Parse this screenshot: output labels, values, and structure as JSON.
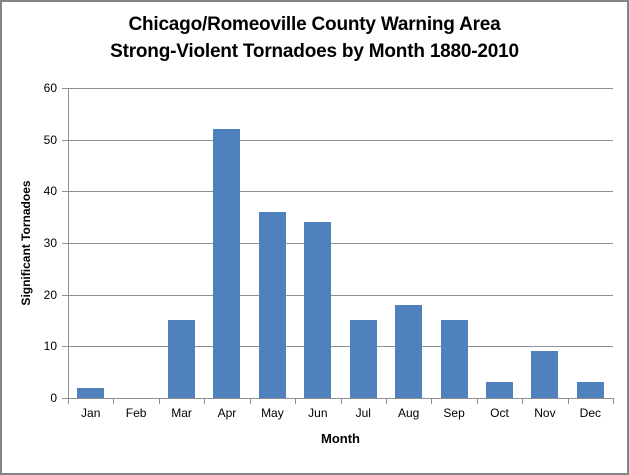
{
  "window": {
    "background": "#FFFFFF",
    "border_color": "#848484"
  },
  "title": {
    "line1": "Chicago/Romeoville County Warning Area",
    "line2": "Strong-Violent Tornadoes by Month 1880-2010"
  },
  "chart_data": {
    "type": "bar",
    "title": "Chicago/Romeoville County Warning Area Strong-Violent Tornadoes by Month 1880-2010",
    "categories": [
      "Jan",
      "Feb",
      "Mar",
      "Apr",
      "May",
      "Jun",
      "Jul",
      "Aug",
      "Sep",
      "Oct",
      "Nov",
      "Dec"
    ],
    "values": [
      2,
      0,
      15,
      52,
      36,
      34,
      15,
      18,
      15,
      3,
      9,
      3
    ],
    "xlabel": "Month",
    "ylabel": "Significant Tornadoes",
    "ylim": [
      0,
      60
    ],
    "yticks": [
      0,
      10,
      20,
      30,
      40,
      50,
      60
    ],
    "grid": "horizontal",
    "legend_position": "none",
    "bar_color": "#4F81BD",
    "gridline_color": "#919191",
    "axis_color": "#919191",
    "text_color": "#000000"
  }
}
